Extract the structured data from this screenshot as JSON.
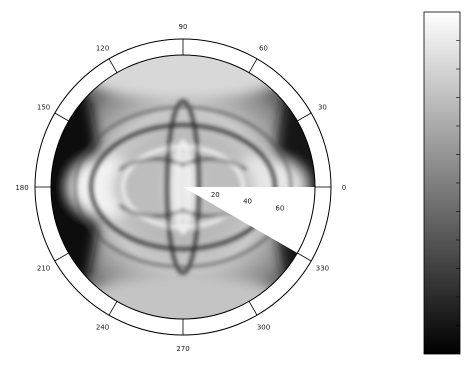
{
  "chart_data": {
    "type": "heatmap",
    "projection": "polar",
    "title": "",
    "angle_ticks_deg": [
      0,
      30,
      60,
      90,
      120,
      150,
      180,
      210,
      240,
      270,
      300,
      330
    ],
    "angle_tick_labels": [
      "0",
      "30",
      "60",
      "90",
      "120",
      "150",
      "180",
      "210",
      "240",
      "270",
      "300",
      "330"
    ],
    "radial_ticks": [
      20,
      40,
      60
    ],
    "radial_tick_labels": [
      "20",
      "40",
      "60"
    ],
    "radial_max": 80,
    "masked_sector_deg": [
      330,
      360
    ],
    "colormap": "gray",
    "colorbar": {
      "show": true,
      "tick_labels": []
    }
  }
}
